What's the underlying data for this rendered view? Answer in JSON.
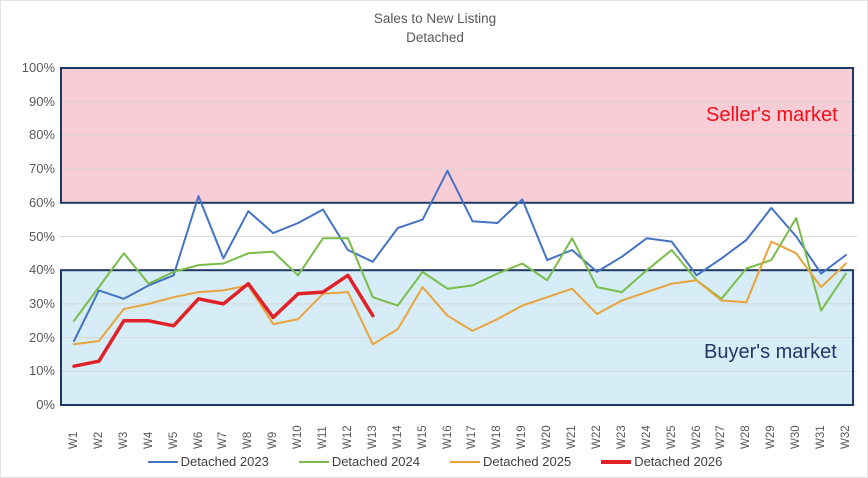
{
  "title": {
    "line1": "Sales to New Listing",
    "line2": "Detached"
  },
  "regions": {
    "seller_label": "Seller's market",
    "buyer_label": "Buyer's market"
  },
  "colors": {
    "seller_band_fill": "#f9cdd6",
    "buyer_band_fill": "#d6edf8",
    "band_border": "#1f3864",
    "gridline": "#d4d4d4",
    "axis_text": "#595959",
    "legend_text": "#404040",
    "seller_text": "#f60d1a",
    "buyer_text": "#1f3864"
  },
  "chart_data": {
    "type": "line",
    "title": "Sales to New Listing — Detached",
    "xlabel": "",
    "ylabel": "",
    "ylim": [
      0,
      100
    ],
    "grid": true,
    "legend_position": "bottom",
    "y_ticks": [
      "0%",
      "10%",
      "20%",
      "30%",
      "40%",
      "50%",
      "60%",
      "70%",
      "80%",
      "90%",
      "100%"
    ],
    "categories": [
      "W1",
      "W2",
      "W3",
      "W4",
      "W5",
      "W6",
      "W7",
      "W8",
      "W9",
      "W10",
      "W11",
      "W12",
      "W13",
      "W14",
      "W15",
      "W16",
      "W17",
      "W18",
      "W19",
      "W20",
      "W21",
      "W22",
      "W23",
      "W24",
      "W25",
      "W26",
      "W27",
      "W28",
      "W29",
      "W30",
      "W31",
      "W32"
    ],
    "bands": [
      {
        "name": "Seller's market",
        "from": 60,
        "to": 100
      },
      {
        "name": "Buyer's market",
        "from": 0,
        "to": 40
      }
    ],
    "series": [
      {
        "name": "Detached 2023",
        "color": "#4472c4",
        "width": 2,
        "values": [
          19,
          34,
          31.5,
          35.5,
          38.5,
          62,
          43.5,
          57.5,
          51,
          54,
          58,
          46,
          42.5,
          52.5,
          55,
          69.5,
          54.5,
          54,
          61,
          43,
          46,
          39.5,
          44,
          49.5,
          48.5,
          38.5,
          43.5,
          49,
          58.5,
          50,
          39,
          44.5
        ]
      },
      {
        "name": "Detached 2024",
        "color": "#79bc4a",
        "width": 2,
        "values": [
          25,
          35,
          45,
          36,
          39.5,
          41.5,
          42,
          45,
          45.5,
          38.5,
          49.5,
          49.5,
          32,
          29.5,
          39.5,
          34.5,
          35.5,
          39,
          42,
          37,
          49.5,
          35,
          33.5,
          40,
          46,
          37,
          31.5,
          40.5,
          43,
          55.5,
          28,
          39
        ]
      },
      {
        "name": "Detached 2025",
        "color": "#e8a33d",
        "width": 2,
        "values": [
          18,
          19,
          28.5,
          30,
          32,
          33.5,
          34,
          35.5,
          24,
          25.5,
          33,
          33.5,
          18,
          22.5,
          35,
          26.5,
          22,
          25.5,
          29.5,
          32,
          34.5,
          27,
          31,
          33.5,
          36,
          37,
          31,
          30.5,
          48.5,
          45,
          35,
          42
        ]
      },
      {
        "name": "Detached 2026",
        "color": "#e02228",
        "width": 3.5,
        "values": [
          11.5,
          13,
          25,
          25,
          23.5,
          31.5,
          30,
          36,
          26,
          33,
          33.5,
          38.5,
          26.5
        ]
      }
    ]
  }
}
